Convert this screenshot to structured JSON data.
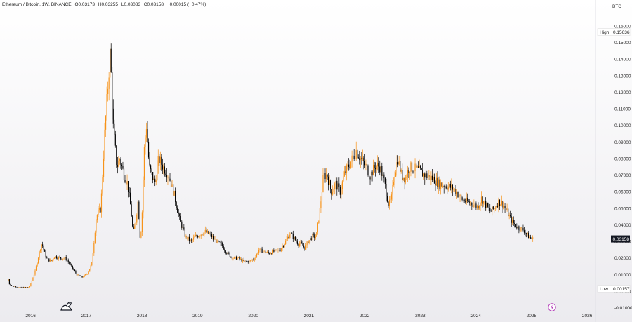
{
  "header": {
    "symbol": "Ethereum / Bitcoin, 1W, BINANCE",
    "open_label": "O",
    "open": "0.03173",
    "high_label": "H",
    "high": "0.03255",
    "low_label": "L",
    "low": "0.03083",
    "close_label": "C",
    "close": "0.03158",
    "change": "−0.00015 (−0.47%)"
  },
  "currency": "BTC",
  "markers": {
    "high_label": "High",
    "high_value": "0.15636",
    "low_label": "Low",
    "low_value": "0.00157",
    "current_value": "0.03158"
  },
  "icons": {
    "logo": "tradingview-logo-icon",
    "event": "lightning-event-icon"
  },
  "colors": {
    "up": "#f7931a",
    "down": "#000000",
    "axis": "#222222"
  },
  "chart_data": {
    "type": "candlestick",
    "interval": "1W",
    "xlim": [
      2015.45,
      2026.15
    ],
    "ylim": [
      -0.0105,
      0.163
    ],
    "y_ticks": [
      "0.16000",
      "0.15000",
      "0.14000",
      "0.13000",
      "0.12000",
      "0.11000",
      "0.10000",
      "0.09000",
      "0.08000",
      "0.07000",
      "0.06000",
      "0.05000",
      "0.04000",
      "0.03000",
      "0.02000",
      "0.01000",
      "0.00000",
      "-0.01000"
    ],
    "x_ticks": [
      "2016",
      "2017",
      "2018",
      "2019",
      "2020",
      "2021",
      "2022",
      "2023",
      "2024",
      "2025",
      "2026"
    ],
    "anchors": [
      [
        2015.6,
        0.006
      ],
      [
        2015.61,
        0.01
      ],
      [
        2015.63,
        0.0045
      ],
      [
        2015.7,
        0.003
      ],
      [
        2015.85,
        0.0023
      ],
      [
        2016.0,
        0.0025
      ],
      [
        2016.1,
        0.012
      ],
      [
        2016.18,
        0.024
      ],
      [
        2016.22,
        0.029
      ],
      [
        2016.3,
        0.02
      ],
      [
        2016.38,
        0.018
      ],
      [
        2016.45,
        0.021
      ],
      [
        2016.55,
        0.02
      ],
      [
        2016.65,
        0.02
      ],
      [
        2016.75,
        0.015
      ],
      [
        2016.85,
        0.01
      ],
      [
        2016.95,
        0.0085
      ],
      [
        2017.05,
        0.011
      ],
      [
        2017.12,
        0.017
      ],
      [
        2017.2,
        0.045
      ],
      [
        2017.28,
        0.05
      ],
      [
        2017.35,
        0.095
      ],
      [
        2017.42,
        0.13
      ],
      [
        2017.45,
        0.145
      ],
      [
        2017.5,
        0.1
      ],
      [
        2017.57,
        0.075
      ],
      [
        2017.62,
        0.08
      ],
      [
        2017.7,
        0.07
      ],
      [
        2017.76,
        0.065
      ],
      [
        2017.82,
        0.05
      ],
      [
        2017.86,
        0.035
      ],
      [
        2017.9,
        0.04
      ],
      [
        2017.95,
        0.055
      ],
      [
        2017.99,
        0.03
      ],
      [
        2018.02,
        0.045
      ],
      [
        2018.06,
        0.085
      ],
      [
        2018.1,
        0.1
      ],
      [
        2018.15,
        0.075
      ],
      [
        2018.2,
        0.07
      ],
      [
        2018.25,
        0.065
      ],
      [
        2018.32,
        0.08
      ],
      [
        2018.4,
        0.075
      ],
      [
        2018.5,
        0.07
      ],
      [
        2018.6,
        0.058
      ],
      [
        2018.7,
        0.043
      ],
      [
        2018.8,
        0.033
      ],
      [
        2018.9,
        0.03
      ],
      [
        2018.98,
        0.033
      ],
      [
        2019.05,
        0.034
      ],
      [
        2019.15,
        0.036
      ],
      [
        2019.25,
        0.034
      ],
      [
        2019.35,
        0.03
      ],
      [
        2019.45,
        0.028
      ],
      [
        2019.55,
        0.023
      ],
      [
        2019.65,
        0.02
      ],
      [
        2019.75,
        0.02
      ],
      [
        2019.85,
        0.018
      ],
      [
        2019.95,
        0.018
      ],
      [
        2020.05,
        0.02
      ],
      [
        2020.12,
        0.025
      ],
      [
        2020.2,
        0.024
      ],
      [
        2020.3,
        0.023
      ],
      [
        2020.4,
        0.024
      ],
      [
        2020.5,
        0.025
      ],
      [
        2020.6,
        0.03
      ],
      [
        2020.68,
        0.035
      ],
      [
        2020.75,
        0.032
      ],
      [
        2020.82,
        0.029
      ],
      [
        2020.9,
        0.028
      ],
      [
        2020.95,
        0.026
      ],
      [
        2021.0,
        0.03
      ],
      [
        2021.08,
        0.033
      ],
      [
        2021.15,
        0.033
      ],
      [
        2021.22,
        0.05
      ],
      [
        2021.28,
        0.07
      ],
      [
        2021.35,
        0.07
      ],
      [
        2021.42,
        0.06
      ],
      [
        2021.5,
        0.065
      ],
      [
        2021.58,
        0.06
      ],
      [
        2021.65,
        0.07
      ],
      [
        2021.72,
        0.075
      ],
      [
        2021.8,
        0.08
      ],
      [
        2021.87,
        0.085
      ],
      [
        2021.95,
        0.08
      ],
      [
        2022.05,
        0.075
      ],
      [
        2022.12,
        0.07
      ],
      [
        2022.22,
        0.076
      ],
      [
        2022.3,
        0.075
      ],
      [
        2022.38,
        0.065
      ],
      [
        2022.45,
        0.052
      ],
      [
        2022.5,
        0.055
      ],
      [
        2022.55,
        0.07
      ],
      [
        2022.62,
        0.08
      ],
      [
        2022.68,
        0.07
      ],
      [
        2022.75,
        0.068
      ],
      [
        2022.82,
        0.075
      ],
      [
        2022.9,
        0.074
      ],
      [
        2022.98,
        0.073
      ],
      [
        2023.1,
        0.07
      ],
      [
        2023.25,
        0.068
      ],
      [
        2023.35,
        0.065
      ],
      [
        2023.45,
        0.064
      ],
      [
        2023.55,
        0.063
      ],
      [
        2023.65,
        0.061
      ],
      [
        2023.75,
        0.056
      ],
      [
        2023.85,
        0.054
      ],
      [
        2023.95,
        0.053
      ],
      [
        2024.05,
        0.051
      ],
      [
        2024.12,
        0.056
      ],
      [
        2024.2,
        0.052
      ],
      [
        2024.28,
        0.048
      ],
      [
        2024.35,
        0.05
      ],
      [
        2024.42,
        0.054
      ],
      [
        2024.5,
        0.053
      ],
      [
        2024.58,
        0.048
      ],
      [
        2024.65,
        0.043
      ],
      [
        2024.72,
        0.04
      ],
      [
        2024.8,
        0.038
      ],
      [
        2024.88,
        0.037
      ],
      [
        2024.94,
        0.034
      ],
      [
        2025.0,
        0.032
      ],
      [
        2025.03,
        0.0316
      ]
    ]
  }
}
